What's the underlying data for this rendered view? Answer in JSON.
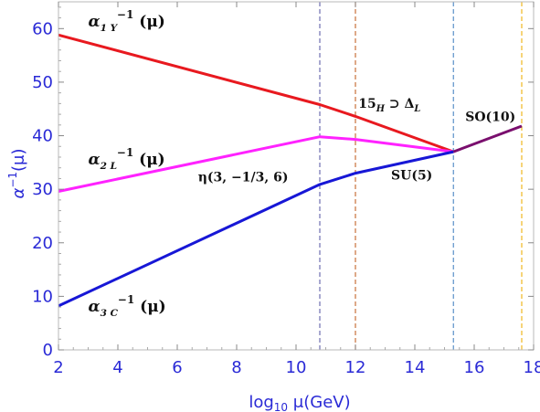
{
  "chart_data": {
    "type": "line",
    "xlabel": "log10 μ(GeV)",
    "ylabel": "α−1(μ)",
    "xlim": [
      2,
      18
    ],
    "ylim": [
      0,
      65
    ],
    "xticks": [
      2,
      4,
      6,
      8,
      10,
      12,
      14,
      16,
      18
    ],
    "yticks": [
      0,
      10,
      20,
      30,
      40,
      50,
      60
    ],
    "grid": false,
    "series": [
      {
        "key": "a1",
        "color": "#e8191f",
        "points": [
          [
            2,
            58.8
          ],
          [
            10.8,
            45.8
          ],
          [
            12,
            43.6
          ],
          [
            15.3,
            37
          ]
        ]
      },
      {
        "key": "a2",
        "color": "#ff22ff",
        "points": [
          [
            2,
            29.6
          ],
          [
            10.8,
            39.8
          ],
          [
            12,
            39.3
          ],
          [
            15.3,
            37
          ]
        ]
      },
      {
        "key": "a3",
        "color": "#1717d6",
        "points": [
          [
            2,
            8.2
          ],
          [
            10.8,
            30.9
          ],
          [
            12,
            33
          ],
          [
            15.3,
            37
          ]
        ]
      },
      {
        "key": "unified",
        "color": "#7a0f6e",
        "points": [
          [
            15.3,
            37
          ],
          [
            17.6,
            41.8
          ]
        ]
      }
    ],
    "vlines": [
      {
        "x": 10.8,
        "color": "#6f6fb0"
      },
      {
        "x": 12.0,
        "color": "#c9703a"
      },
      {
        "x": 15.3,
        "color": "#5a90c8"
      },
      {
        "x": 17.6,
        "color": "#f0b820"
      }
    ],
    "annotations": [
      {
        "key": "label_a1",
        "alpha": "α",
        "sub": "1 Y",
        "sup": "−1",
        "arg": "(μ)",
        "x": 3.0,
        "y": 60.4,
        "size": 17
      },
      {
        "key": "label_a2",
        "alpha": "α",
        "sub": "2 L",
        "sup": "−1",
        "arg": "(μ)",
        "x": 3.0,
        "y": 34.6,
        "size": 17
      },
      {
        "key": "label_a3",
        "alpha": "α",
        "sub": "3 C",
        "sup": "−1",
        "arg": "(μ)",
        "x": 3.0,
        "y": 7.2,
        "size": 17
      },
      {
        "key": "label_eta",
        "text": "η(3, −1/3, 6)",
        "x": 6.7,
        "y": 31.5,
        "size": 14
      },
      {
        "key": "label_15h",
        "text15": "15",
        "sub": "H",
        "rest": "⊃ Δ",
        "sub2": "L",
        "x": 12.1,
        "y": 45.2,
        "size": 14
      },
      {
        "key": "label_su5",
        "text": "SU(5)",
        "x": 13.2,
        "y": 31.8,
        "size": 14
      },
      {
        "key": "label_so10",
        "text": "SO(10)",
        "x": 15.7,
        "y": 42.7,
        "size": 14
      }
    ]
  }
}
